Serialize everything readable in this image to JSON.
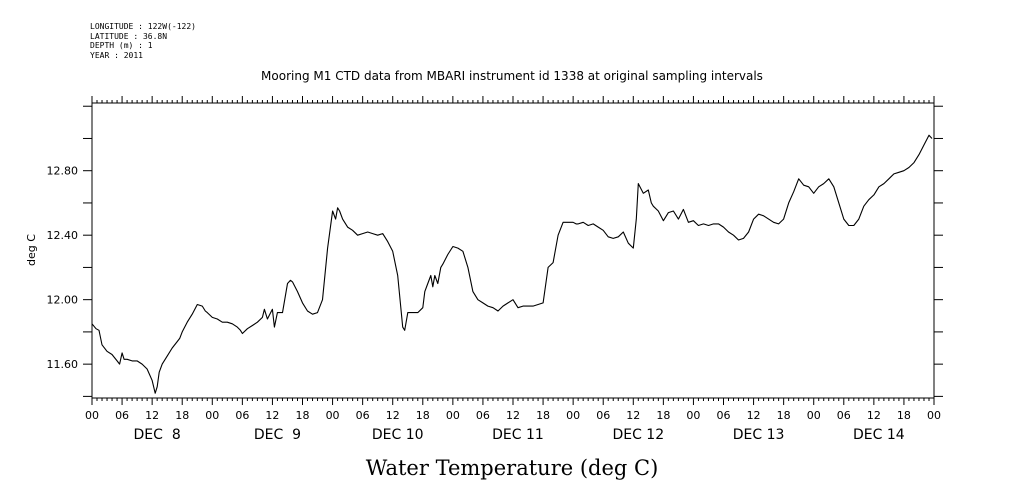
{
  "metadata": [
    "LONGITUDE : 122W(-122)",
    "LATITUDE : 36.8N",
    "DEPTH (m) : 1",
    "YEAR : 2011"
  ],
  "chart_data": {
    "type": "line",
    "title": "Mooring M1 CTD data from MBARI instrument id 1338 at original sampling intervals",
    "xlabel": "Water Temperature (deg C)",
    "ylabel": "deg C",
    "xlim": [
      0,
      168
    ],
    "ylim": [
      11.39,
      13.22
    ],
    "yticks": [
      11.6,
      12.0,
      12.4,
      12.8
    ],
    "yticklabels": [
      "11.60",
      "12.00",
      "12.40",
      "12.80"
    ],
    "x_unit": "hours since DEC 8 00",
    "hour_tick_labels": [
      "00",
      "06",
      "12",
      "18",
      "00",
      "06",
      "12",
      "18",
      "00",
      "06",
      "12",
      "18",
      "00",
      "06",
      "12",
      "18",
      "00",
      "06",
      "12",
      "18",
      "00",
      "06",
      "12",
      "18",
      "00",
      "06",
      "12",
      "18",
      "00"
    ],
    "day_labels": [
      "DEC  8",
      "DEC  9",
      "DEC 10",
      "DEC 11",
      "DEC 12",
      "DEC 13",
      "DEC 14"
    ],
    "grid": false,
    "series": [
      {
        "color": "#000000",
        "x": [
          0,
          0.8,
          1.4,
          2,
          3,
          4,
          5,
          5.5,
          6,
          6.4,
          7,
          8,
          9,
          10,
          11,
          12,
          12.6,
          13,
          13.4,
          14,
          15,
          16,
          17,
          17.5,
          18,
          19,
          20,
          21,
          22,
          22.6,
          23,
          24,
          25,
          26,
          27,
          28,
          29,
          29.6,
          30,
          31,
          32,
          33,
          34,
          34.4,
          35,
          36,
          36.4,
          37,
          38,
          39,
          39.6,
          40,
          41,
          42,
          43,
          44,
          45,
          46,
          47,
          48,
          48.6,
          49,
          49.4,
          50,
          51,
          52,
          53,
          54,
          55,
          56,
          57,
          58,
          59,
          60,
          61,
          62,
          62.4,
          63,
          64,
          65,
          66,
          66.4,
          67,
          67.6,
          68,
          68.4,
          69,
          69.6,
          70,
          71,
          72,
          73,
          74,
          75,
          76,
          77,
          78,
          79,
          80,
          81,
          82,
          83,
          84,
          85,
          86,
          87,
          88,
          89,
          90,
          91,
          92,
          93,
          94,
          95,
          96,
          96.6,
          97,
          98,
          99,
          100,
          101,
          102,
          103,
          104,
          105,
          106,
          107,
          108,
          108.6,
          109,
          110,
          111,
          111.6,
          112,
          113,
          114,
          115,
          116,
          117,
          118,
          119,
          120,
          121,
          122,
          123,
          124,
          125,
          126,
          127,
          128,
          129,
          130,
          131,
          132,
          133,
          134,
          135,
          136,
          137,
          138,
          139,
          140,
          141,
          142,
          143,
          144,
          145,
          146,
          147,
          148,
          149,
          150,
          151,
          152,
          153,
          154,
          155,
          156,
          157,
          158,
          159,
          160,
          161,
          162,
          163,
          164,
          165,
          166,
          167,
          167.6
        ],
        "y": [
          11.85,
          11.82,
          11.81,
          11.72,
          11.68,
          11.66,
          11.62,
          11.6,
          11.67,
          11.63,
          11.63,
          11.62,
          11.62,
          11.6,
          11.57,
          11.5,
          11.42,
          11.46,
          11.55,
          11.6,
          11.65,
          11.7,
          11.74,
          11.76,
          11.8,
          11.86,
          11.91,
          11.97,
          11.96,
          11.93,
          11.92,
          11.89,
          11.88,
          11.86,
          11.86,
          11.85,
          11.83,
          11.81,
          11.79,
          11.82,
          11.84,
          11.86,
          11.89,
          11.94,
          11.88,
          11.94,
          11.83,
          11.92,
          11.92,
          12.1,
          12.12,
          12.11,
          12.05,
          11.98,
          11.93,
          11.91,
          11.92,
          12.0,
          12.32,
          12.55,
          12.5,
          12.57,
          12.55,
          12.5,
          12.45,
          12.43,
          12.4,
          12.41,
          12.42,
          12.41,
          12.4,
          12.41,
          12.36,
          12.3,
          12.15,
          11.83,
          11.81,
          11.92,
          11.92,
          11.92,
          11.95,
          12.05,
          12.1,
          12.15,
          12.08,
          12.15,
          12.1,
          12.2,
          12.22,
          12.28,
          12.33,
          12.32,
          12.3,
          12.2,
          12.05,
          12.0,
          11.98,
          11.96,
          11.95,
          11.93,
          11.96,
          11.98,
          12.0,
          11.95,
          11.96,
          11.96,
          11.96,
          11.97,
          11.98,
          12.2,
          12.23,
          12.4,
          12.48,
          12.48,
          12.48,
          12.47,
          12.47,
          12.48,
          12.46,
          12.47,
          12.45,
          12.43,
          12.39,
          12.38,
          12.39,
          12.42,
          12.35,
          12.32,
          12.5,
          12.72,
          12.66,
          12.68,
          12.6,
          12.58,
          12.55,
          12.49,
          12.54,
          12.55,
          12.5,
          12.56,
          12.48,
          12.49,
          12.46,
          12.47,
          12.46,
          12.47,
          12.47,
          12.45,
          12.42,
          12.4,
          12.37,
          12.38,
          12.42,
          12.5,
          12.53,
          12.52,
          12.5,
          12.48,
          12.47,
          12.5,
          12.6,
          12.67,
          12.75,
          12.71,
          12.7,
          12.66,
          12.7,
          12.72,
          12.75,
          12.7,
          12.6,
          12.5,
          12.46,
          12.46,
          12.5,
          12.58,
          12.62,
          12.65,
          12.7,
          12.72,
          12.75,
          12.78,
          12.79,
          12.8,
          12.82,
          12.85,
          12.9,
          12.96,
          13.02,
          13.0
        ]
      }
    ]
  }
}
